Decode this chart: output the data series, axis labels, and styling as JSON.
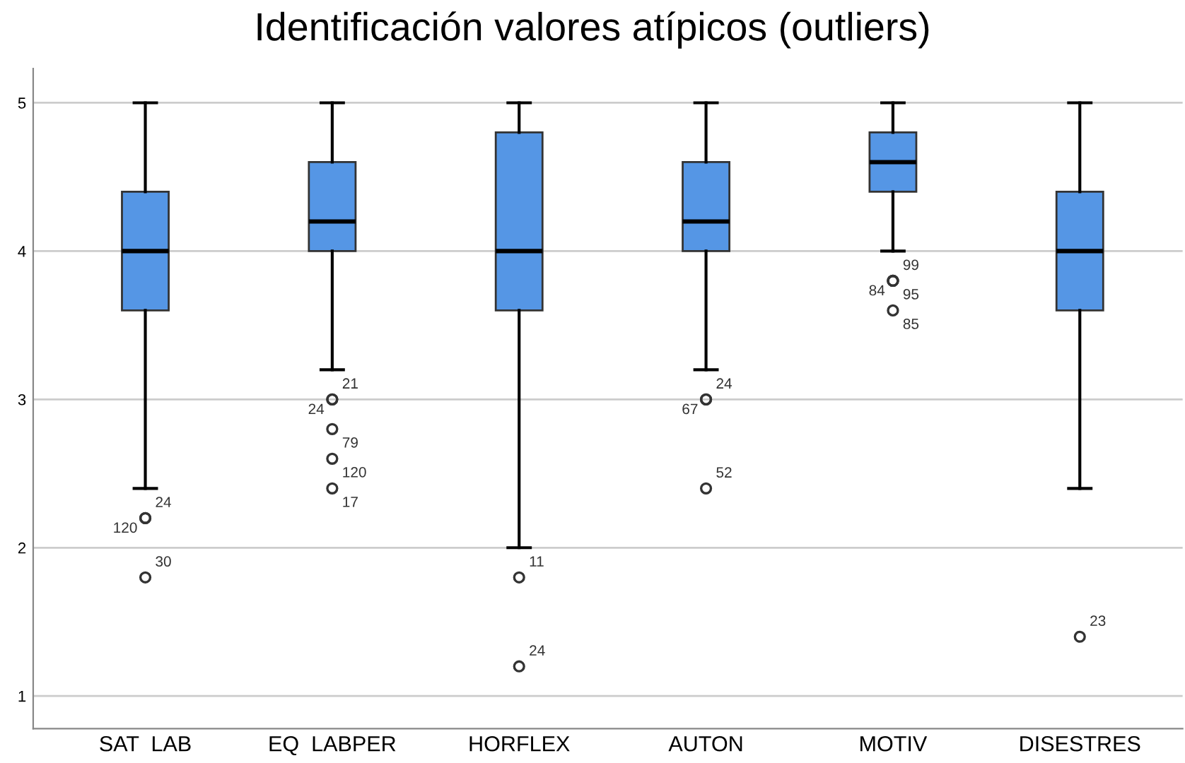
{
  "chart_data": {
    "type": "box",
    "title": "Identificación valores atípicos (outliers)",
    "categories": [
      "SAT  LAB",
      "EQ  LABPER",
      "HORFLEX",
      "AUTON",
      "MOTIV",
      "DISESTRES"
    ],
    "color": "#5596e5",
    "boxes": [
      {
        "low": 2.4,
        "q1": 3.6,
        "median": 4,
        "q3": 4.4,
        "high": 5,
        "outliers": [
          2.2,
          2.2,
          1.8
        ]
      },
      {
        "low": 3.2,
        "q1": 4,
        "median": 4.2,
        "q3": 4.6,
        "high": 5,
        "outliers": [
          3.0,
          3.0,
          2.8,
          2.6,
          2.4
        ]
      },
      {
        "low": 2.0,
        "q1": 3.6,
        "median": 4,
        "q3": 4.8,
        "high": 5,
        "outliers": [
          1.8,
          1.2
        ]
      },
      {
        "low": 3.2,
        "q1": 4,
        "median": 4.2,
        "q3": 4.6,
        "high": 5,
        "outliers": [
          3.0,
          3.0,
          2.4
        ]
      },
      {
        "low": 4.0,
        "q1": 4.4,
        "median": 4.6,
        "q3": 4.8,
        "high": 5,
        "outliers": [
          3.8,
          3.8,
          3.8,
          3.6
        ]
      },
      {
        "low": 2.4,
        "q1": 3.6,
        "median": 4,
        "q3": 4.4,
        "high": 5,
        "outliers": [
          1.4
        ]
      }
    ],
    "annotations": [
      "24",
      "120",
      "30",
      "21",
      "24",
      "79",
      "120",
      "17",
      "11",
      "24",
      "24",
      "67",
      "52",
      "99",
      "84",
      "95",
      "85",
      "23"
    ],
    "ylim": [
      0.78,
      5.23
    ],
    "yticks": [
      1,
      2,
      3,
      4,
      5
    ],
    "grid": "y"
  }
}
